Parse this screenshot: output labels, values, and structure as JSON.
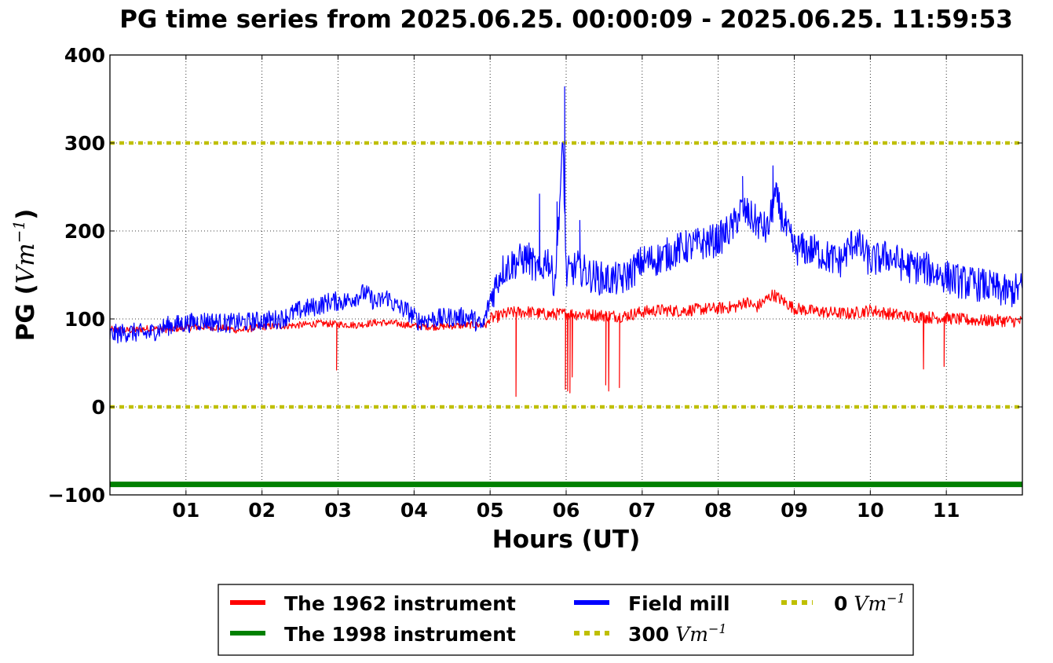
{
  "chart_data": {
    "type": "line",
    "title": "PG time series from 2025.06.25. 00:00:09 - 2025.06.25. 11:59:53",
    "xlabel": "Hours (UT)",
    "ylabel_prefix": "PG (",
    "ylabel_unit": "Vm",
    "ylabel_exp": "−1",
    "ylabel_suffix": ")",
    "xlim": [
      0,
      12
    ],
    "ylim": [
      -100,
      400
    ],
    "grid": true,
    "x_ticks": [
      {
        "v": 1,
        "label": "01"
      },
      {
        "v": 2,
        "label": "02"
      },
      {
        "v": 3,
        "label": "03"
      },
      {
        "v": 4,
        "label": "04"
      },
      {
        "v": 5,
        "label": "05"
      },
      {
        "v": 6,
        "label": "06"
      },
      {
        "v": 7,
        "label": "07"
      },
      {
        "v": 8,
        "label": "08"
      },
      {
        "v": 9,
        "label": "09"
      },
      {
        "v": 10,
        "label": "10"
      },
      {
        "v": 11,
        "label": "11"
      }
    ],
    "y_ticks": [
      {
        "v": -100,
        "label": "−100"
      },
      {
        "v": 0,
        "label": "0"
      },
      {
        "v": 100,
        "label": "100"
      },
      {
        "v": 200,
        "label": "200"
      },
      {
        "v": 300,
        "label": "300"
      },
      {
        "v": 400,
        "label": "400"
      }
    ],
    "legend_placement": "below the plot, 3 columns",
    "series": [
      {
        "name": "The 1962 instrument",
        "color": "#ff0000",
        "style": "solid",
        "x": [
          0.0,
          0.25,
          0.5,
          0.75,
          1.0,
          1.25,
          1.5,
          1.7,
          2.0,
          2.25,
          2.5,
          2.75,
          3.0,
          3.25,
          3.5,
          3.75,
          4.0,
          4.25,
          4.5,
          4.75,
          4.95,
          5.0,
          5.25,
          5.5,
          5.75,
          6.0,
          6.25,
          6.5,
          6.75,
          7.0,
          7.25,
          7.5,
          7.75,
          8.0,
          8.25,
          8.35,
          8.5,
          8.72,
          9.0,
          9.25,
          9.5,
          9.75,
          10.0,
          10.25,
          10.5,
          10.75,
          11.0,
          11.25,
          11.5,
          11.75,
          12.0
        ],
        "y": [
          88,
          87,
          89,
          88,
          90,
          91,
          90,
          87,
          91,
          92,
          93,
          95,
          94,
          93,
          96,
          95,
          92,
          91,
          92,
          93,
          93,
          100,
          107,
          108,
          105,
          106,
          105,
          104,
          103,
          108,
          110,
          109,
          111,
          112,
          114,
          120,
          113,
          128,
          112,
          109,
          107,
          106,
          110,
          106,
          103,
          102,
          101,
          99,
          98,
          98,
          97
        ]
      },
      {
        "name": "The 1998 instrument",
        "color": "#008000",
        "style": "solid",
        "x": [
          0,
          12
        ],
        "y": [
          -88,
          -88
        ]
      },
      {
        "name": "Field mill",
        "color": "#0000ff",
        "style": "solid",
        "x": [
          0.0,
          0.25,
          0.5,
          0.75,
          1.0,
          1.25,
          1.5,
          1.75,
          2.0,
          2.25,
          2.5,
          2.75,
          2.9,
          3.1,
          3.35,
          3.5,
          3.65,
          3.75,
          3.9,
          4.05,
          4.25,
          4.5,
          4.75,
          4.9,
          5.0,
          5.15,
          5.35,
          5.5,
          5.65,
          5.75,
          5.85,
          5.96,
          6.0,
          6.15,
          6.3,
          6.5,
          6.75,
          7.0,
          7.2,
          7.5,
          7.75,
          8.0,
          8.2,
          8.3,
          8.5,
          8.65,
          8.75,
          8.9,
          9.0,
          9.25,
          9.45,
          9.6,
          9.8,
          10.0,
          10.25,
          10.45,
          10.7,
          11.0,
          11.2,
          11.5,
          11.8,
          12.0
        ],
        "y": [
          82,
          85,
          83,
          92,
          95,
          98,
          95,
          96,
          98,
          100,
          110,
          115,
          120,
          120,
          130,
          118,
          125,
          115,
          110,
          98,
          100,
          102,
          102,
          90,
          122,
          155,
          165,
          170,
          150,
          172,
          140,
          300,
          150,
          160,
          150,
          145,
          145,
          165,
          168,
          180,
          185,
          190,
          205,
          225,
          210,
          200,
          240,
          200,
          180,
          178,
          170,
          165,
          190,
          165,
          172,
          160,
          158,
          148,
          142,
          138,
          130,
          135
        ]
      }
    ],
    "spikes": [
      {
        "series": "The 1962 instrument",
        "x": 2.98,
        "y": 42
      },
      {
        "series": "The 1962 instrument",
        "x": 5.34,
        "y": 12
      },
      {
        "series": "The 1962 instrument",
        "x": 5.99,
        "y": 20
      },
      {
        "series": "The 1962 instrument",
        "x": 6.02,
        "y": 18
      },
      {
        "series": "The 1962 instrument",
        "x": 6.05,
        "y": 16
      },
      {
        "series": "The 1962 instrument",
        "x": 6.08,
        "y": 34
      },
      {
        "series": "The 1962 instrument",
        "x": 6.52,
        "y": 25
      },
      {
        "series": "The 1962 instrument",
        "x": 6.56,
        "y": 18
      },
      {
        "series": "The 1962 instrument",
        "x": 6.7,
        "y": 22
      },
      {
        "series": "The 1962 instrument",
        "x": 10.7,
        "y": 43
      },
      {
        "series": "The 1962 instrument",
        "x": 10.97,
        "y": 46
      },
      {
        "series": "Field mill",
        "x": 5.98,
        "y": 364
      },
      {
        "series": "Field mill",
        "x": 5.65,
        "y": 242
      },
      {
        "series": "Field mill",
        "x": 6.18,
        "y": 212
      },
      {
        "series": "Field mill",
        "x": 5.88,
        "y": 233
      },
      {
        "series": "Field mill",
        "x": 8.72,
        "y": 274
      },
      {
        "series": "Field mill",
        "x": 8.32,
        "y": 262
      }
    ],
    "reference_lines": [
      {
        "value": 300,
        "color": "#bfbf00",
        "style": "dotted",
        "legend_num": "300",
        "legend_unit": "Vm",
        "legend_exp": "−1"
      },
      {
        "value": 0,
        "color": "#bfbf00",
        "style": "dotted",
        "legend_num": "0",
        "legend_unit": "Vm",
        "legend_exp": "−1"
      }
    ]
  }
}
